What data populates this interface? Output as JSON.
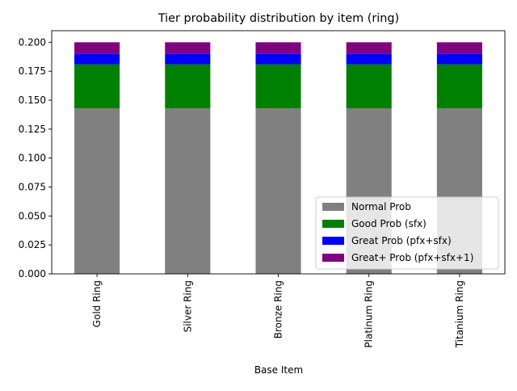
{
  "chart_data": {
    "type": "bar",
    "stacked": true,
    "title": "Tier probability distribution by item (ring)",
    "xlabel": "Base Item",
    "ylabel": "",
    "categories": [
      "Gold Ring",
      "Silver Ring",
      "Bronze Ring",
      "Platinum Ring",
      "Titanium Ring"
    ],
    "ylim": [
      0,
      0.21
    ],
    "yticks": [
      "0.000",
      "0.025",
      "0.050",
      "0.075",
      "0.100",
      "0.125",
      "0.150",
      "0.175",
      "0.200"
    ],
    "legend_position": "bottom-right",
    "grid": false,
    "series": [
      {
        "name": "Normal Prob",
        "color": "#808080",
        "values": [
          0.143,
          0.143,
          0.143,
          0.143,
          0.143
        ]
      },
      {
        "name": "Good Prob (sfx)",
        "color": "#008000",
        "values": [
          0.038,
          0.038,
          0.038,
          0.038,
          0.038
        ]
      },
      {
        "name": "Great Prob (pfx+sfx)",
        "color": "#0000ff",
        "values": [
          0.009,
          0.009,
          0.009,
          0.009,
          0.009
        ]
      },
      {
        "name": "Great+ Prob (pfx+sfx+1)",
        "color": "#800080",
        "values": [
          0.01,
          0.01,
          0.01,
          0.01,
          0.01
        ]
      }
    ]
  }
}
